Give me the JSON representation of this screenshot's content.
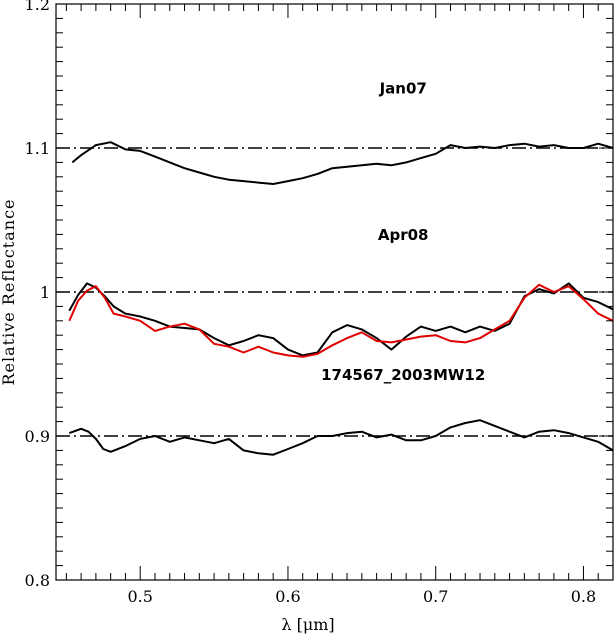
{
  "chart_data": {
    "type": "line",
    "xlabel": "λ [μm]",
    "ylabel": "Relative Reflectance",
    "xlim": [
      0.443,
      0.82
    ],
    "ylim": [
      0.8,
      1.2
    ],
    "x_ticks": [
      0.5,
      0.6,
      0.7,
      0.8
    ],
    "x_tick_labels": [
      "0.5",
      "0.6",
      "0.7",
      "0.8"
    ],
    "y_ticks": [
      0.8,
      0.9,
      1.0,
      1.1,
      1.2
    ],
    "y_tick_labels": [
      "0.8",
      "0.9",
      "1",
      "1.1",
      "1.2"
    ],
    "grid": false,
    "reference_lines": [
      {
        "y": 1.1,
        "style": "dash-dot",
        "color": "#000000"
      },
      {
        "y": 1.0,
        "style": "dash-dot",
        "color": "#000000"
      },
      {
        "y": 0.9,
        "style": "dash-dot",
        "color": "#000000"
      }
    ],
    "annotations": [
      {
        "text": "Jan07",
        "x": 0.678,
        "y": 1.138
      },
      {
        "text": "Apr08",
        "x": 0.678,
        "y": 1.036
      },
      {
        "text": "174567_2003MW12",
        "x": 0.678,
        "y": 0.939
      }
    ],
    "series": [
      {
        "color": "#000000",
        "points": [
          [
            0.454,
            1.09
          ],
          [
            0.46,
            1.095
          ],
          [
            0.47,
            1.102
          ],
          [
            0.48,
            1.104
          ],
          [
            0.49,
            1.099
          ],
          [
            0.5,
            1.098
          ],
          [
            0.51,
            1.094
          ],
          [
            0.52,
            1.09
          ],
          [
            0.53,
            1.086
          ],
          [
            0.54,
            1.083
          ],
          [
            0.55,
            1.08
          ],
          [
            0.56,
            1.078
          ],
          [
            0.57,
            1.077
          ],
          [
            0.58,
            1.076
          ],
          [
            0.59,
            1.075
          ],
          [
            0.6,
            1.077
          ],
          [
            0.61,
            1.079
          ],
          [
            0.62,
            1.082
          ],
          [
            0.63,
            1.086
          ],
          [
            0.64,
            1.087
          ],
          [
            0.65,
            1.088
          ],
          [
            0.66,
            1.089
          ],
          [
            0.67,
            1.088
          ],
          [
            0.68,
            1.09
          ],
          [
            0.69,
            1.093
          ],
          [
            0.7,
            1.096
          ],
          [
            0.71,
            1.102
          ],
          [
            0.72,
            1.1
          ],
          [
            0.73,
            1.101
          ],
          [
            0.74,
            1.1
          ],
          [
            0.75,
            1.102
          ],
          [
            0.76,
            1.103
          ],
          [
            0.77,
            1.101
          ],
          [
            0.78,
            1.102
          ],
          [
            0.79,
            1.1
          ],
          [
            0.8,
            1.1
          ],
          [
            0.81,
            1.103
          ],
          [
            0.82,
            1.1
          ]
        ]
      },
      {
        "color": "#000000",
        "points": [
          [
            0.452,
            0.987
          ],
          [
            0.458,
            0.998
          ],
          [
            0.464,
            1.006
          ],
          [
            0.47,
            1.003
          ],
          [
            0.476,
            0.997
          ],
          [
            0.482,
            0.99
          ],
          [
            0.49,
            0.985
          ],
          [
            0.5,
            0.983
          ],
          [
            0.51,
            0.98
          ],
          [
            0.52,
            0.976
          ],
          [
            0.53,
            0.975
          ],
          [
            0.54,
            0.974
          ],
          [
            0.55,
            0.968
          ],
          [
            0.56,
            0.963
          ],
          [
            0.57,
            0.966
          ],
          [
            0.58,
            0.97
          ],
          [
            0.59,
            0.968
          ],
          [
            0.6,
            0.96
          ],
          [
            0.61,
            0.956
          ],
          [
            0.62,
            0.958
          ],
          [
            0.63,
            0.972
          ],
          [
            0.64,
            0.977
          ],
          [
            0.65,
            0.974
          ],
          [
            0.66,
            0.968
          ],
          [
            0.67,
            0.96
          ],
          [
            0.68,
            0.969
          ],
          [
            0.69,
            0.976
          ],
          [
            0.7,
            0.973
          ],
          [
            0.71,
            0.976
          ],
          [
            0.72,
            0.972
          ],
          [
            0.73,
            0.976
          ],
          [
            0.74,
            0.973
          ],
          [
            0.75,
            0.978
          ],
          [
            0.76,
            0.997
          ],
          [
            0.77,
            1.002
          ],
          [
            0.78,
            0.999
          ],
          [
            0.79,
            1.006
          ],
          [
            0.8,
            0.996
          ],
          [
            0.81,
            0.993
          ],
          [
            0.82,
            0.988
          ]
        ]
      },
      {
        "color": "#e00000",
        "points": [
          [
            0.452,
            0.98
          ],
          [
            0.458,
            0.994
          ],
          [
            0.464,
            1.001
          ],
          [
            0.47,
            1.004
          ],
          [
            0.476,
            0.996
          ],
          [
            0.482,
            0.985
          ],
          [
            0.49,
            0.983
          ],
          [
            0.5,
            0.98
          ],
          [
            0.51,
            0.973
          ],
          [
            0.52,
            0.976
          ],
          [
            0.53,
            0.978
          ],
          [
            0.54,
            0.974
          ],
          [
            0.55,
            0.964
          ],
          [
            0.56,
            0.962
          ],
          [
            0.57,
            0.958
          ],
          [
            0.58,
            0.962
          ],
          [
            0.59,
            0.958
          ],
          [
            0.6,
            0.956
          ],
          [
            0.61,
            0.955
          ],
          [
            0.62,
            0.957
          ],
          [
            0.63,
            0.963
          ],
          [
            0.64,
            0.968
          ],
          [
            0.65,
            0.972
          ],
          [
            0.66,
            0.966
          ],
          [
            0.67,
            0.965
          ],
          [
            0.68,
            0.967
          ],
          [
            0.69,
            0.969
          ],
          [
            0.7,
            0.97
          ],
          [
            0.71,
            0.966
          ],
          [
            0.72,
            0.965
          ],
          [
            0.73,
            0.968
          ],
          [
            0.74,
            0.974
          ],
          [
            0.75,
            0.98
          ],
          [
            0.76,
            0.996
          ],
          [
            0.77,
            1.005
          ],
          [
            0.78,
            1.0
          ],
          [
            0.79,
            1.004
          ],
          [
            0.8,
            0.995
          ],
          [
            0.81,
            0.985
          ],
          [
            0.82,
            0.98
          ]
        ]
      },
      {
        "color": "#000000",
        "points": [
          [
            0.452,
            0.902
          ],
          [
            0.46,
            0.905
          ],
          [
            0.465,
            0.903
          ],
          [
            0.47,
            0.898
          ],
          [
            0.475,
            0.891
          ],
          [
            0.48,
            0.889
          ],
          [
            0.49,
            0.893
          ],
          [
            0.5,
            0.898
          ],
          [
            0.51,
            0.9
          ],
          [
            0.52,
            0.896
          ],
          [
            0.53,
            0.899
          ],
          [
            0.54,
            0.897
          ],
          [
            0.55,
            0.895
          ],
          [
            0.56,
            0.898
          ],
          [
            0.57,
            0.89
          ],
          [
            0.58,
            0.888
          ],
          [
            0.59,
            0.887
          ],
          [
            0.6,
            0.891
          ],
          [
            0.61,
            0.895
          ],
          [
            0.62,
            0.9
          ],
          [
            0.63,
            0.9
          ],
          [
            0.64,
            0.902
          ],
          [
            0.65,
            0.903
          ],
          [
            0.66,
            0.899
          ],
          [
            0.67,
            0.901
          ],
          [
            0.68,
            0.897
          ],
          [
            0.69,
            0.897
          ],
          [
            0.7,
            0.9
          ],
          [
            0.71,
            0.906
          ],
          [
            0.72,
            0.909
          ],
          [
            0.73,
            0.911
          ],
          [
            0.74,
            0.907
          ],
          [
            0.75,
            0.903
          ],
          [
            0.76,
            0.899
          ],
          [
            0.77,
            0.903
          ],
          [
            0.78,
            0.904
          ],
          [
            0.79,
            0.902
          ],
          [
            0.8,
            0.899
          ],
          [
            0.81,
            0.896
          ],
          [
            0.82,
            0.89
          ]
        ]
      }
    ]
  }
}
